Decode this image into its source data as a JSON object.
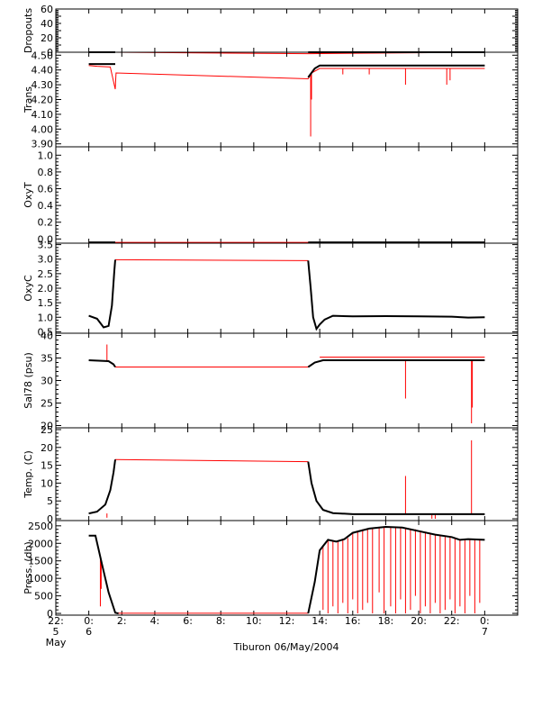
{
  "figure": {
    "caption": "Tiburon 06/May/2004"
  },
  "chart_data": {
    "type": "line",
    "shared_x": {
      "unit": "hours since 2004-05-06 00:00",
      "range": [
        -2,
        26
      ],
      "ticks": [
        {
          "x": -2,
          "line1": "22:",
          "line2": "5",
          "line3": "May"
        },
        {
          "x": 0,
          "line1": "0:",
          "line2": "6"
        },
        {
          "x": 2,
          "line1": "2:"
        },
        {
          "x": 4,
          "line1": "4:"
        },
        {
          "x": 6,
          "line1": "6:"
        },
        {
          "x": 8,
          "line1": "8:"
        },
        {
          "x": 10,
          "line1": "10:"
        },
        {
          "x": 12,
          "line1": "12:"
        },
        {
          "x": 14,
          "line1": "14:"
        },
        {
          "x": 16,
          "line1": "16:"
        },
        {
          "x": 18,
          "line1": "18:"
        },
        {
          "x": 20,
          "line1": "20:"
        },
        {
          "x": 22,
          "line1": "22:"
        },
        {
          "x": 24,
          "line1": "0:",
          "line2": "7"
        }
      ],
      "data_span": [
        0,
        24
      ]
    },
    "colors": {
      "raw": "#ff0000",
      "qc": "#000000"
    },
    "panels": [
      {
        "id": "dropouts",
        "ylabel": "Dropouts",
        "ylim": [
          0,
          60
        ],
        "yticks": [
          0,
          10,
          20,
          30,
          40,
          50,
          60
        ],
        "ytick_labels": [
          "0",
          "",
          "20",
          "",
          "40",
          "",
          "60"
        ],
        "segments": [
          {
            "x": [
              0,
              1.6,
              13.3,
              24
            ],
            "y": [
              0,
              0,
              -2,
              0
            ]
          }
        ],
        "qc_segments": [
          {
            "x": [
              0,
              1.6
            ],
            "y": [
              0,
              0
            ]
          },
          {
            "x": [
              13.3,
              24
            ],
            "y": [
              0,
              0
            ]
          }
        ]
      },
      {
        "id": "trans",
        "ylabel": "Trans",
        "ylim": [
          3.88,
          4.52
        ],
        "yticks": [
          3.9,
          4.0,
          4.1,
          4.2,
          4.3,
          4.4,
          4.5
        ],
        "ytick_labels": [
          "3.90",
          "4.00",
          "4.10",
          "4.20",
          "4.30",
          "4.40",
          "4.50"
        ],
        "segments": [
          {
            "x": [
              0,
              0.5,
              1.3,
              1.6,
              1.65,
              13.3,
              13.5,
              14.0,
              24
            ],
            "y": [
              4.43,
              4.425,
              4.42,
              4.27,
              4.38,
              4.34,
              4.38,
              4.41,
              4.41
            ]
          }
        ],
        "qc_segments": [
          {
            "x": [
              0,
              1.6
            ],
            "y": [
              4.44,
              4.44
            ]
          },
          {
            "x": [
              13.3,
              13.7,
              14.0,
              24
            ],
            "y": [
              4.35,
              4.41,
              4.43,
              4.43
            ]
          }
        ],
        "spikes": [
          {
            "x": 13.45,
            "y0": 4.38,
            "y1": 3.95
          },
          {
            "x": 13.5,
            "y0": 4.38,
            "y1": 4.2
          },
          {
            "x": 19.2,
            "y0": 4.41,
            "y1": 4.3
          },
          {
            "x": 21.7,
            "y0": 4.41,
            "y1": 4.3
          },
          {
            "x": 21.9,
            "y0": 4.41,
            "y1": 4.33
          },
          {
            "x": 17.0,
            "y0": 4.41,
            "y1": 4.37
          },
          {
            "x": 15.4,
            "y0": 4.41,
            "y1": 4.37
          }
        ]
      },
      {
        "id": "oxyt",
        "ylabel": "OxyT",
        "ylim": [
          -0.05,
          1.1
        ],
        "yticks": [
          0,
          0.2,
          0.4,
          0.6,
          0.8,
          1.0
        ],
        "ytick_labels": [
          "0.0",
          "0.2",
          "0.4",
          "0.6",
          "0.8",
          "1.0"
        ],
        "segments": [
          {
            "x": [
              0,
              24
            ],
            "y": [
              -0.04,
              -0.04
            ]
          }
        ],
        "qc_segments": [
          {
            "x": [
              0,
              1.6
            ],
            "y": [
              -0.04,
              -0.04
            ]
          },
          {
            "x": [
              13.3,
              24
            ],
            "y": [
              -0.04,
              -0.04
            ]
          }
        ]
      },
      {
        "id": "oxyc",
        "ylabel": "OxyC",
        "ylim": [
          0.45,
          3.55
        ],
        "yticks": [
          0.5,
          1.0,
          1.5,
          2.0,
          2.5,
          3.0,
          3.5
        ],
        "ytick_labels": [
          "0.5",
          "1.0",
          "1.5",
          "2.0",
          "2.5",
          "3.0",
          "3.5"
        ],
        "segments": [
          {
            "x": [
              1.6,
              13.3
            ],
            "y": [
              2.98,
              2.95
            ]
          }
        ],
        "qc_segments": [
          {
            "x": [
              0,
              0.5,
              0.9,
              1.2,
              1.4,
              1.55,
              1.6
            ],
            "y": [
              1.05,
              0.95,
              0.65,
              0.7,
              1.4,
              2.6,
              2.98
            ]
          },
          {
            "x": [
              13.3,
              13.45,
              13.6,
              13.8,
              14.0,
              14.3,
              14.8,
              16,
              18,
              20,
              22,
              23,
              24
            ],
            "y": [
              2.95,
              2.0,
              1.0,
              0.6,
              0.75,
              0.92,
              1.05,
              1.03,
              1.04,
              1.03,
              1.02,
              0.99,
              1.0
            ]
          }
        ]
      },
      {
        "id": "sal",
        "ylabel": "Sal78 (psu)",
        "ylim": [
          19.5,
          40.5
        ],
        "yticks": [
          20,
          25,
          30,
          35,
          40
        ],
        "ytick_labels": [
          "20",
          "25",
          "30",
          "35",
          "40"
        ],
        "segments": [
          {
            "x": [
              1.6,
              13.3
            ],
            "y": [
              33.0,
              33.0
            ]
          },
          {
            "x": [
              14.0,
              24
            ],
            "y": [
              35.2,
              35.2
            ]
          }
        ],
        "qc_segments": [
          {
            "x": [
              0,
              1.2,
              1.5,
              1.6
            ],
            "y": [
              34.5,
              34.3,
              33.6,
              33.0
            ]
          },
          {
            "x": [
              13.3,
              13.7,
              14.2,
              24
            ],
            "y": [
              33.0,
              34.0,
              34.5,
              34.5
            ]
          }
        ],
        "spikes": [
          {
            "x": 1.1,
            "y0": 34.5,
            "y1": 38.0
          },
          {
            "x": 19.2,
            "y0": 34.5,
            "y1": 26.0
          },
          {
            "x": 23.2,
            "y0": 34.5,
            "y1": 20.5
          },
          {
            "x": 23.25,
            "y0": 34.5,
            "y1": 24.0
          }
        ]
      },
      {
        "id": "temp",
        "ylabel": "Temp. (C)",
        "ylim": [
          -0.5,
          25.5
        ],
        "yticks": [
          0,
          5,
          10,
          15,
          20,
          25
        ],
        "ytick_labels": [
          "0",
          "5",
          "10",
          "15",
          "20",
          "25"
        ],
        "segments": [
          {
            "x": [
              1.6,
              13.3
            ],
            "y": [
              16.6,
              16.0
            ]
          }
        ],
        "qc_segments": [
          {
            "x": [
              0,
              0.5,
              1.0,
              1.3,
              1.5,
              1.6
            ],
            "y": [
              1.5,
              2.0,
              4.0,
              8.0,
              13.0,
              16.6
            ]
          },
          {
            "x": [
              13.3,
              13.5,
              13.8,
              14.2,
              14.8,
              16,
              24
            ],
            "y": [
              16.0,
              10.0,
              5.0,
              2.5,
              1.6,
              1.3,
              1.3
            ]
          }
        ],
        "spikes": [
          {
            "x": 1.1,
            "y0": 1.5,
            "y1": 0.3
          },
          {
            "x": 19.2,
            "y0": 1.3,
            "y1": 12.0
          },
          {
            "x": 23.2,
            "y0": 1.3,
            "y1": 22.0
          },
          {
            "x": 20.8,
            "y0": 1.3,
            "y1": 0.0
          },
          {
            "x": 21.0,
            "y0": 1.3,
            "y1": 0.0
          }
        ]
      },
      {
        "id": "press",
        "ylabel": "Press. (db)",
        "ylim": [
          -50,
          2650
        ],
        "yticks": [
          0,
          500,
          1000,
          1500,
          2000,
          2500
        ],
        "ytick_labels": [
          "0",
          "500",
          "1000",
          "1500",
          "2000",
          "2500"
        ],
        "segments": [
          {
            "x": [
              1.6,
              13.3
            ],
            "y": [
              5,
              5
            ]
          }
        ],
        "qc_segments": [
          {
            "x": [
              0,
              0.4,
              0.8,
              1.2,
              1.6,
              1.8
            ],
            "y": [
              2220,
              2220,
              1400,
              600,
              20,
              0
            ]
          },
          {
            "x": [
              13.3,
              13.7,
              14.0,
              14.5,
              15.0,
              15.5,
              16,
              17,
              18,
              19,
              20,
              21,
              22,
              22.5,
              23,
              24
            ],
            "y": [
              0,
              900,
              1800,
              2100,
              2050,
              2120,
              2300,
              2420,
              2470,
              2450,
              2350,
              2250,
              2180,
              2100,
              2120,
              2100
            ]
          }
        ],
        "spikes": [
          {
            "x": 0.7,
            "y0": 1600,
            "y1": 200
          },
          {
            "x": 0.75,
            "y0": 1500,
            "y1": 700
          },
          {
            "x": 14.2,
            "y0": 1950,
            "y1": 100
          },
          {
            "x": 14.5,
            "y0": 2100,
            "y1": 0
          },
          {
            "x": 14.8,
            "y0": 2080,
            "y1": 200
          },
          {
            "x": 15.1,
            "y0": 2060,
            "y1": 0
          },
          {
            "x": 15.4,
            "y0": 2100,
            "y1": 300
          },
          {
            "x": 15.7,
            "y0": 2150,
            "y1": 0
          },
          {
            "x": 16.0,
            "y0": 2300,
            "y1": 400
          },
          {
            "x": 16.3,
            "y0": 2350,
            "y1": 0
          },
          {
            "x": 16.6,
            "y0": 2400,
            "y1": 100
          },
          {
            "x": 16.9,
            "y0": 2420,
            "y1": 300
          },
          {
            "x": 17.2,
            "y0": 2430,
            "y1": 0
          },
          {
            "x": 17.6,
            "y0": 2450,
            "y1": 600
          },
          {
            "x": 17.9,
            "y0": 2460,
            "y1": 0
          },
          {
            "x": 18.3,
            "y0": 2460,
            "y1": 200
          },
          {
            "x": 18.6,
            "y0": 2455,
            "y1": 0
          },
          {
            "x": 18.9,
            "y0": 2450,
            "y1": 400
          },
          {
            "x": 19.2,
            "y0": 2440,
            "y1": 0
          },
          {
            "x": 19.5,
            "y0": 2420,
            "y1": 100
          },
          {
            "x": 19.8,
            "y0": 2400,
            "y1": 500
          },
          {
            "x": 20.1,
            "y0": 2350,
            "y1": 0
          },
          {
            "x": 20.4,
            "y0": 2330,
            "y1": 200
          },
          {
            "x": 20.7,
            "y0": 2300,
            "y1": 0
          },
          {
            "x": 21.0,
            "y0": 2260,
            "y1": 300
          },
          {
            "x": 21.3,
            "y0": 2240,
            "y1": 0
          },
          {
            "x": 21.6,
            "y0": 2210,
            "y1": 100
          },
          {
            "x": 21.9,
            "y0": 2190,
            "y1": 400
          },
          {
            "x": 22.2,
            "y0": 2150,
            "y1": 0
          },
          {
            "x": 22.5,
            "y0": 2100,
            "y1": 200
          },
          {
            "x": 22.8,
            "y0": 2110,
            "y1": 0
          },
          {
            "x": 23.1,
            "y0": 2120,
            "y1": 500
          },
          {
            "x": 23.4,
            "y0": 2120,
            "y1": 0
          },
          {
            "x": 23.7,
            "y0": 2110,
            "y1": 300
          }
        ]
      }
    ]
  }
}
